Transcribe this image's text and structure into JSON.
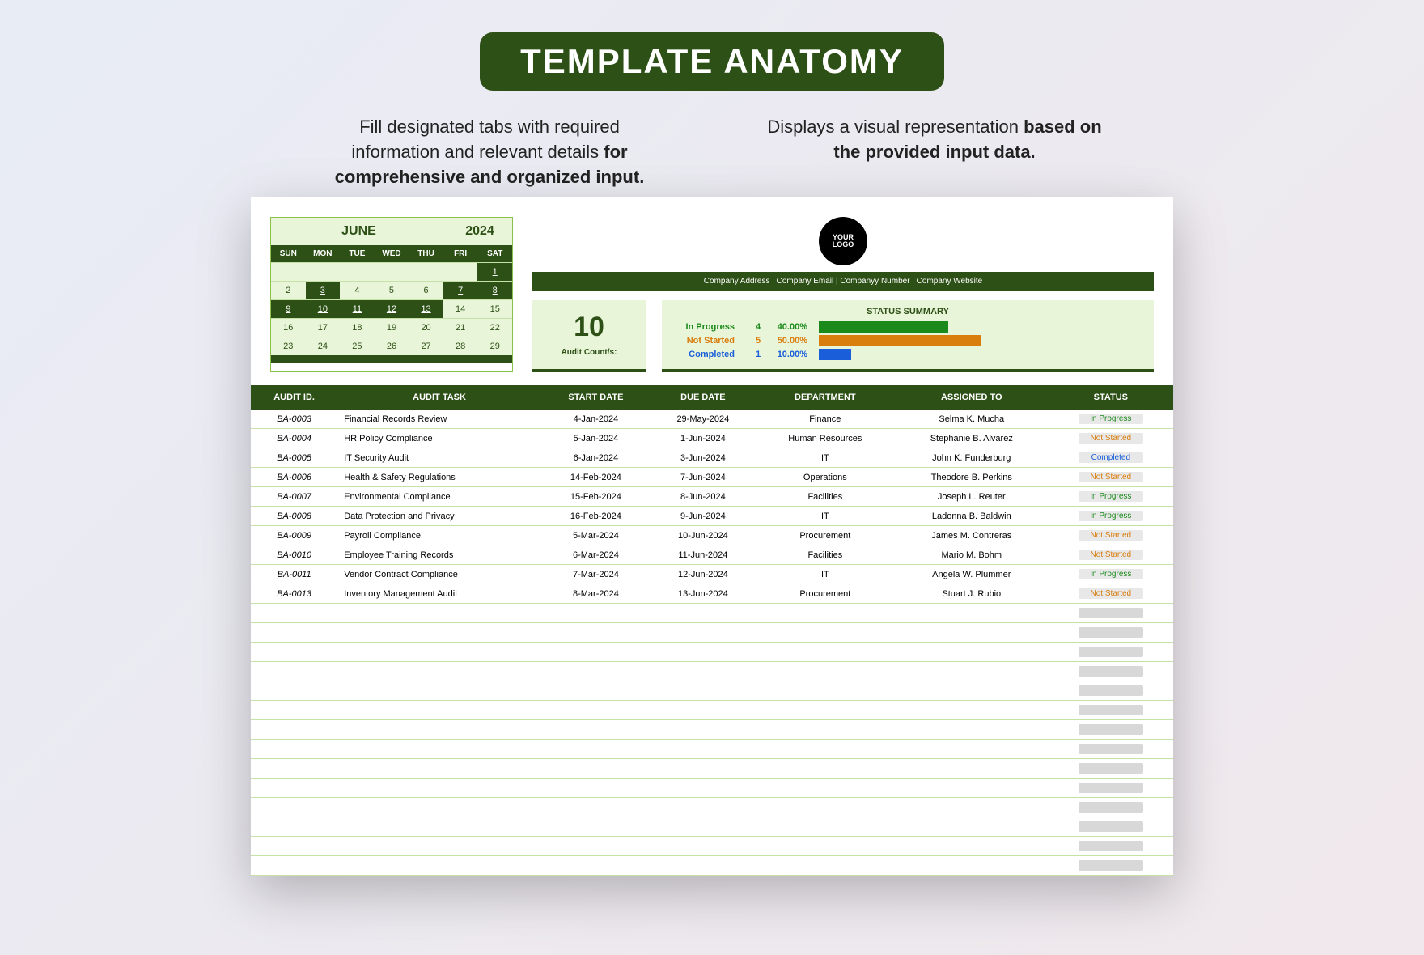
{
  "title": "TEMPLATE ANATOMY",
  "callouts": {
    "left_plain": "Fill designated tabs with required information and relevant details ",
    "left_bold": "for comprehensive and organized input.",
    "right_plain": "Displays a visual representation ",
    "right_bold": "based on the provided input data."
  },
  "calendar": {
    "month": "JUNE",
    "year": "2024",
    "day_headers": [
      "SUN",
      "MON",
      "TUE",
      "WED",
      "THU",
      "FRI",
      "SAT"
    ],
    "weeks": [
      [
        {
          "v": "",
          "d": 0
        },
        {
          "v": "",
          "d": 0
        },
        {
          "v": "",
          "d": 0
        },
        {
          "v": "",
          "d": 0
        },
        {
          "v": "",
          "d": 0
        },
        {
          "v": "",
          "d": 0
        },
        {
          "v": "1",
          "d": 1
        }
      ],
      [
        {
          "v": "2",
          "d": 0
        },
        {
          "v": "3",
          "d": 1
        },
        {
          "v": "4",
          "d": 0
        },
        {
          "v": "5",
          "d": 0
        },
        {
          "v": "6",
          "d": 0
        },
        {
          "v": "7",
          "d": 1
        },
        {
          "v": "8",
          "d": 1
        }
      ],
      [
        {
          "v": "9",
          "d": 1
        },
        {
          "v": "10",
          "d": 1
        },
        {
          "v": "11",
          "d": 1
        },
        {
          "v": "12",
          "d": 1
        },
        {
          "v": "13",
          "d": 1
        },
        {
          "v": "14",
          "d": 0
        },
        {
          "v": "15",
          "d": 0
        }
      ],
      [
        {
          "v": "16",
          "d": 0
        },
        {
          "v": "17",
          "d": 0
        },
        {
          "v": "18",
          "d": 0
        },
        {
          "v": "19",
          "d": 0
        },
        {
          "v": "20",
          "d": 0
        },
        {
          "v": "21",
          "d": 0
        },
        {
          "v": "22",
          "d": 0
        }
      ],
      [
        {
          "v": "23",
          "d": 0
        },
        {
          "v": "24",
          "d": 0
        },
        {
          "v": "25",
          "d": 0
        },
        {
          "v": "26",
          "d": 0
        },
        {
          "v": "27",
          "d": 0
        },
        {
          "v": "28",
          "d": 0
        },
        {
          "v": "29",
          "d": 0
        }
      ]
    ]
  },
  "logo": {
    "line1": "YOUR",
    "line2": "LOGO"
  },
  "company_bar": "Company Address  |  Company Email  |  Companyy Number  |  Company Website",
  "audit_count": {
    "value": "10",
    "label": "Audit Count/s:"
  },
  "status_summary": {
    "title": "STATUS SUMMARY",
    "rows": [
      {
        "label": "In Progress",
        "count": "4",
        "pct": "40.00%",
        "color": "#1b8a1b",
        "bar_pct": 40
      },
      {
        "label": "Not Started",
        "count": "5",
        "pct": "50.00%",
        "color": "#d97d0d",
        "bar_pct": 50
      },
      {
        "label": "Completed",
        "count": "1",
        "pct": "10.00%",
        "color": "#1a5fd9",
        "bar_pct": 10
      }
    ]
  },
  "table": {
    "headers": [
      "AUDIT ID.",
      "AUDIT TASK",
      "START DATE",
      "DUE DATE",
      "DEPARTMENT",
      "ASSIGNED TO",
      "STATUS"
    ],
    "rows": [
      {
        "id": "BA-0003",
        "task": "Financial Records Review",
        "start": "4-Jan-2024",
        "due": "29-May-2024",
        "dept": "Finance",
        "assigned": "Selma K. Mucha",
        "status": "In Progress",
        "scolor": "#1b8a1b"
      },
      {
        "id": "BA-0004",
        "task": "HR Policy Compliance",
        "start": "5-Jan-2024",
        "due": "1-Jun-2024",
        "dept": "Human Resources",
        "assigned": "Stephanie B. Alvarez",
        "status": "Not Started",
        "scolor": "#d97d0d"
      },
      {
        "id": "BA-0005",
        "task": "IT Security Audit",
        "start": "6-Jan-2024",
        "due": "3-Jun-2024",
        "dept": "IT",
        "assigned": "John K. Funderburg",
        "status": "Completed",
        "scolor": "#1a5fd9"
      },
      {
        "id": "BA-0006",
        "task": "Health & Safety Regulations",
        "start": "14-Feb-2024",
        "due": "7-Jun-2024",
        "dept": "Operations",
        "assigned": "Theodore B. Perkins",
        "status": "Not Started",
        "scolor": "#d97d0d"
      },
      {
        "id": "BA-0007",
        "task": "Environmental Compliance",
        "start": "15-Feb-2024",
        "due": "8-Jun-2024",
        "dept": "Facilities",
        "assigned": "Joseph L. Reuter",
        "status": "In Progress",
        "scolor": "#1b8a1b"
      },
      {
        "id": "BA-0008",
        "task": "Data Protection and Privacy",
        "start": "16-Feb-2024",
        "due": "9-Jun-2024",
        "dept": "IT",
        "assigned": "Ladonna B. Baldwin",
        "status": "In Progress",
        "scolor": "#1b8a1b"
      },
      {
        "id": "BA-0009",
        "task": "Payroll Compliance",
        "start": "5-Mar-2024",
        "due": "10-Jun-2024",
        "dept": "Procurement",
        "assigned": "James M. Contreras",
        "status": "Not Started",
        "scolor": "#d97d0d"
      },
      {
        "id": "BA-0010",
        "task": "Employee Training Records",
        "start": "6-Mar-2024",
        "due": "11-Jun-2024",
        "dept": "Facilities",
        "assigned": "Mario M. Bohm",
        "status": "Not Started",
        "scolor": "#d97d0d"
      },
      {
        "id": "BA-0011",
        "task": "Vendor Contract Compliance",
        "start": "7-Mar-2024",
        "due": "12-Jun-2024",
        "dept": "IT",
        "assigned": "Angela W. Plummer",
        "status": "In Progress",
        "scolor": "#1b8a1b"
      },
      {
        "id": "BA-0013",
        "task": "Inventory Management Audit",
        "start": "8-Mar-2024",
        "due": "13-Jun-2024",
        "dept": "Procurement",
        "assigned": "Stuart J. Rubio",
        "status": "Not Started",
        "scolor": "#d97d0d"
      }
    ],
    "empty_rows": 14
  },
  "colors": {
    "primary_green": "#2d5016",
    "light_green": "#e8f5d8",
    "border_green": "#c5e1a5"
  }
}
